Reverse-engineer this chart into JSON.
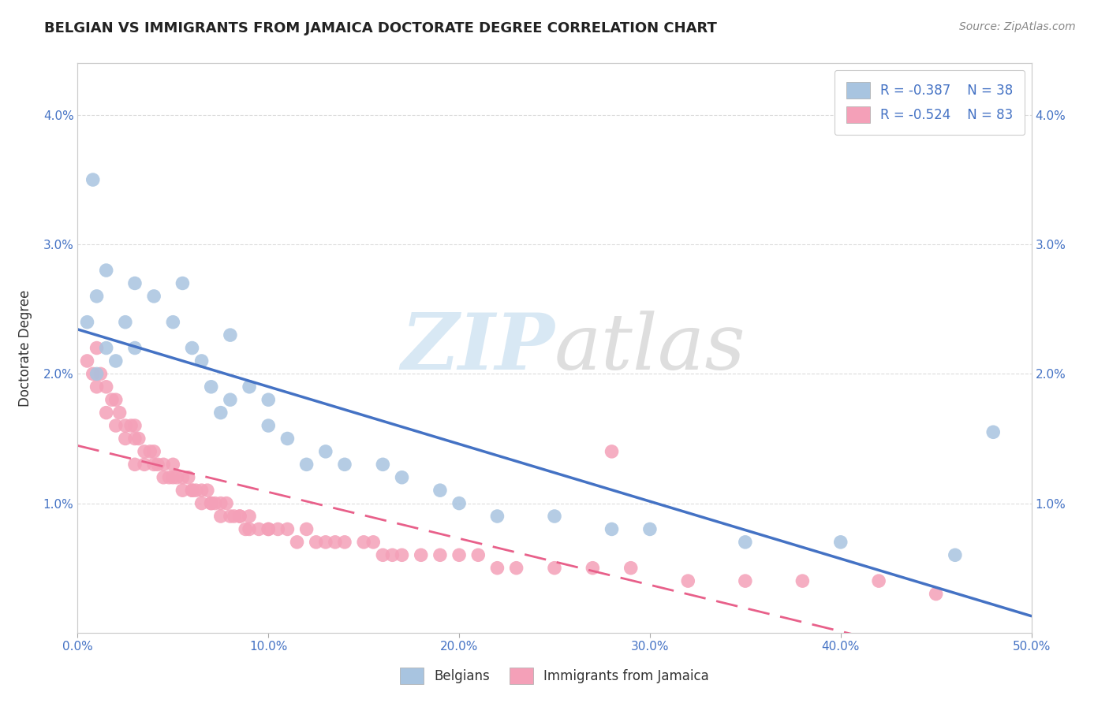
{
  "title": "BELGIAN VS IMMIGRANTS FROM JAMAICA DOCTORATE DEGREE CORRELATION CHART",
  "source": "Source: ZipAtlas.com",
  "ylabel": "Doctorate Degree",
  "watermark_zip": "ZIP",
  "watermark_atlas": "atlas",
  "belgian_R": -0.387,
  "belgian_N": 38,
  "jamaican_R": -0.524,
  "jamaican_N": 83,
  "belgian_color": "#a8c4e0",
  "jamaican_color": "#f4a0b8",
  "regression_belgian_color": "#4472c4",
  "regression_jamaican_color": "#e8608a",
  "legend_text_color": "#4472c4",
  "xlim": [
    0.0,
    0.5
  ],
  "ylim": [
    0.0,
    0.044
  ],
  "xtick_labels": [
    "0.0%",
    "10.0%",
    "20.0%",
    "30.0%",
    "40.0%",
    "50.0%"
  ],
  "xtick_values": [
    0.0,
    0.1,
    0.2,
    0.3,
    0.4,
    0.5
  ],
  "ytick_labels": [
    "1.0%",
    "2.0%",
    "3.0%",
    "4.0%"
  ],
  "ytick_values": [
    0.01,
    0.02,
    0.03,
    0.04
  ],
  "ytick_right_labels": [
    "1.0%",
    "2.0%",
    "3.0%",
    "4.0%"
  ],
  "grid_color": "#d8d8d8",
  "background_color": "#ffffff",
  "belgian_x": [
    0.005,
    0.008,
    0.01,
    0.01,
    0.015,
    0.015,
    0.02,
    0.025,
    0.03,
    0.03,
    0.04,
    0.05,
    0.055,
    0.06,
    0.065,
    0.07,
    0.075,
    0.08,
    0.08,
    0.09,
    0.1,
    0.1,
    0.11,
    0.12,
    0.13,
    0.14,
    0.16,
    0.17,
    0.19,
    0.2,
    0.22,
    0.25,
    0.28,
    0.3,
    0.35,
    0.4,
    0.46,
    0.48
  ],
  "belgian_y": [
    0.024,
    0.035,
    0.026,
    0.02,
    0.022,
    0.028,
    0.021,
    0.024,
    0.027,
    0.022,
    0.026,
    0.024,
    0.027,
    0.022,
    0.021,
    0.019,
    0.017,
    0.023,
    0.018,
    0.019,
    0.018,
    0.016,
    0.015,
    0.013,
    0.014,
    0.013,
    0.013,
    0.012,
    0.011,
    0.01,
    0.009,
    0.009,
    0.008,
    0.008,
    0.007,
    0.007,
    0.006,
    0.0155
  ],
  "jamaican_x": [
    0.005,
    0.008,
    0.01,
    0.01,
    0.012,
    0.015,
    0.015,
    0.018,
    0.02,
    0.02,
    0.022,
    0.025,
    0.025,
    0.028,
    0.03,
    0.03,
    0.03,
    0.032,
    0.035,
    0.035,
    0.038,
    0.04,
    0.04,
    0.042,
    0.045,
    0.045,
    0.048,
    0.05,
    0.05,
    0.052,
    0.055,
    0.055,
    0.058,
    0.06,
    0.06,
    0.062,
    0.065,
    0.065,
    0.068,
    0.07,
    0.07,
    0.072,
    0.075,
    0.075,
    0.078,
    0.08,
    0.082,
    0.085,
    0.085,
    0.088,
    0.09,
    0.09,
    0.095,
    0.1,
    0.1,
    0.105,
    0.11,
    0.115,
    0.12,
    0.125,
    0.13,
    0.135,
    0.14,
    0.15,
    0.155,
    0.16,
    0.165,
    0.17,
    0.18,
    0.19,
    0.2,
    0.21,
    0.22,
    0.23,
    0.25,
    0.27,
    0.29,
    0.32,
    0.35,
    0.38,
    0.42,
    0.45,
    0.28
  ],
  "jamaican_y": [
    0.021,
    0.02,
    0.019,
    0.022,
    0.02,
    0.019,
    0.017,
    0.018,
    0.018,
    0.016,
    0.017,
    0.016,
    0.015,
    0.016,
    0.016,
    0.015,
    0.013,
    0.015,
    0.014,
    0.013,
    0.014,
    0.014,
    0.013,
    0.013,
    0.013,
    0.012,
    0.012,
    0.013,
    0.012,
    0.012,
    0.012,
    0.011,
    0.012,
    0.011,
    0.011,
    0.011,
    0.011,
    0.01,
    0.011,
    0.01,
    0.01,
    0.01,
    0.01,
    0.009,
    0.01,
    0.009,
    0.009,
    0.009,
    0.009,
    0.008,
    0.009,
    0.008,
    0.008,
    0.008,
    0.008,
    0.008,
    0.008,
    0.007,
    0.008,
    0.007,
    0.007,
    0.007,
    0.007,
    0.007,
    0.007,
    0.006,
    0.006,
    0.006,
    0.006,
    0.006,
    0.006,
    0.006,
    0.005,
    0.005,
    0.005,
    0.005,
    0.005,
    0.004,
    0.004,
    0.004,
    0.004,
    0.003,
    0.014
  ]
}
